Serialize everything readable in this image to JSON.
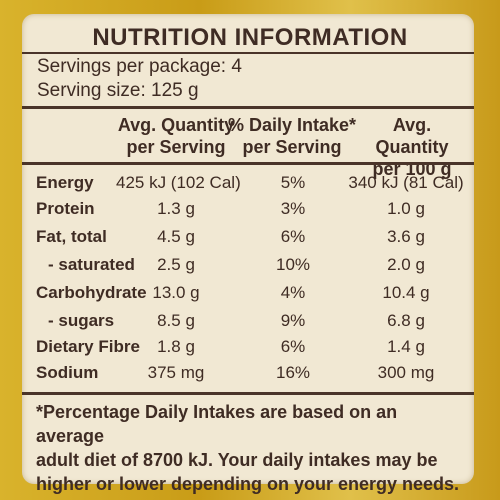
{
  "panel": {
    "title": "NUTRITION INFORMATION",
    "servings_per_package": "Servings per package: 4",
    "serving_size": "Serving size: 125 g",
    "headers": {
      "avg_serving_1": "Avg. Quantity",
      "avg_serving_2": "per Serving",
      "daily_1": "% Daily Intake*",
      "daily_2": "per Serving",
      "avg_100_1": "Avg. Quantity",
      "avg_100_2": "per 100 g"
    },
    "rows": [
      {
        "label": "Energy",
        "serving": "425 kJ (102 Cal)",
        "daily": "5%",
        "per100": "340 kJ (81 Cal)"
      },
      {
        "label": "Protein",
        "serving": "1.3 g",
        "daily": "3%",
        "per100": "1.0 g"
      },
      {
        "label": "Fat, total",
        "serving": "4.5 g",
        "daily": "6%",
        "per100": "3.6 g"
      },
      {
        "label": "- saturated",
        "serving": "2.5 g",
        "daily": "10%",
        "per100": "2.0 g"
      },
      {
        "label": "Carbohydrate",
        "serving": "13.0 g",
        "daily": "4%",
        "per100": "10.4 g"
      },
      {
        "label": "- sugars",
        "serving": "8.5 g",
        "daily": "9%",
        "per100": "6.8 g"
      },
      {
        "label": "Dietary Fibre",
        "serving": "1.8 g",
        "daily": "6%",
        "per100": "1.4 g"
      },
      {
        "label": "Sodium",
        "serving": "375 mg",
        "daily": "16%",
        "per100": "300 mg"
      }
    ],
    "footnote": [
      "*Percentage Daily Intakes are based on an average",
      "adult diet of 8700 kJ. Your daily intakes may be",
      "higher or lower depending on your energy needs."
    ]
  }
}
